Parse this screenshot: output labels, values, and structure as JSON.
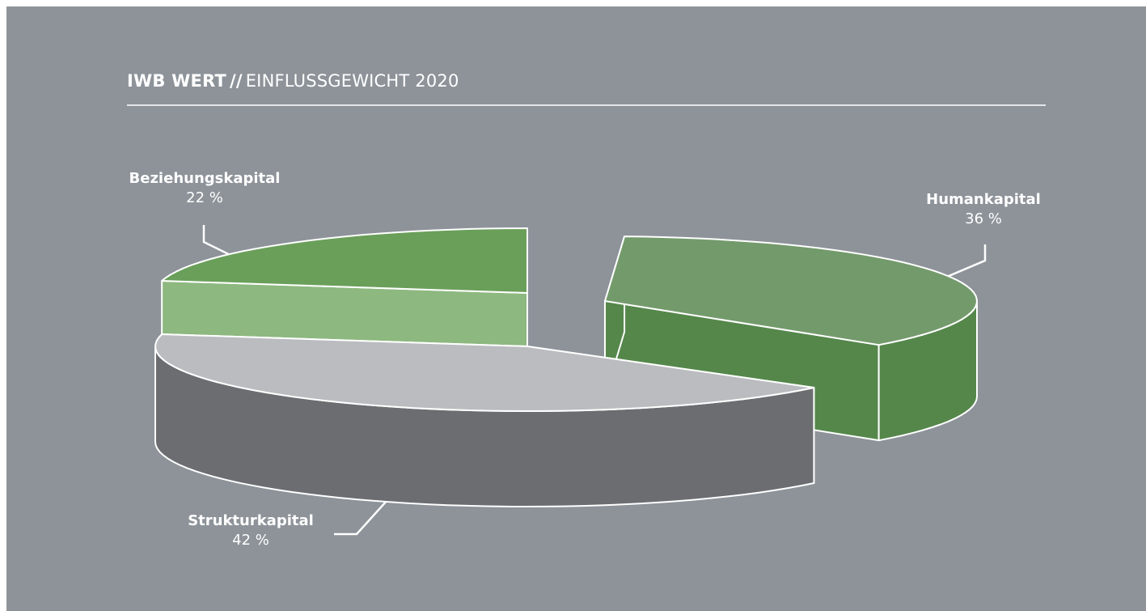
{
  "title": {
    "strong": "IWB WERT",
    "slashes": "//",
    "sub": "EINFLUSSGEWICHT 2020"
  },
  "chart_data": {
    "type": "pie",
    "variant": "3d-exploded",
    "title": "IWB WERT // EINFLUSSGEWICHT 2020",
    "unit": "%",
    "slices": [
      {
        "name": "Beziehungskapital",
        "value": 22,
        "label": "22 %",
        "color_top": "#6a9f5a",
        "color_side": "#8db87f"
      },
      {
        "name": "Humankapital",
        "value": 36,
        "label": "36 %",
        "color_top": "#739a6b",
        "color_side": "#55874b"
      },
      {
        "name": "Strukturkapital",
        "value": 42,
        "label": "42 %",
        "color_top": "#babcbf",
        "color_side": "#6b6d71"
      }
    ],
    "legend": "none",
    "grid": false
  },
  "colors": {
    "background": "#8d9399",
    "outline": "#ffffff"
  }
}
